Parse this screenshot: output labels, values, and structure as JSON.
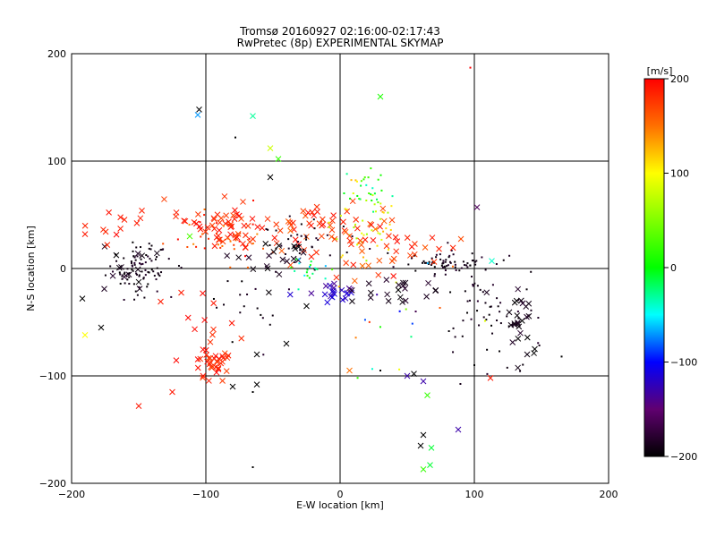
{
  "chart_data": {
    "type": "scatter",
    "title": "Tromsø 20160927 02:16:00-02:17:43",
    "subtitle": "RwPretec (8p) EXPERIMENTAL SKYMAP",
    "xlabel": "E-W location [km]",
    "ylabel": "N-S location [km]",
    "xlim": [
      -200,
      200
    ],
    "ylim": [
      -200,
      200
    ],
    "xticks": [
      -200,
      -100,
      0,
      100,
      200
    ],
    "yticks": [
      -200,
      -100,
      0,
      100,
      200
    ],
    "grid": true,
    "colorbar": {
      "unit": "[m/s]",
      "range": [
        -200,
        200
      ],
      "ticks": [
        200,
        100,
        0,
        -100,
        -200
      ]
    },
    "clusters": [
      {
        "marker": "dot",
        "cx": -150,
        "cy": 0,
        "sx": 12,
        "sy": 12,
        "n": 90,
        "vmin": -200,
        "vmax": -180
      },
      {
        "marker": "cross",
        "cx": -160,
        "cy": -5,
        "sx": 10,
        "sy": 10,
        "n": 14,
        "vmin": -200,
        "vmax": -180
      },
      {
        "marker": "cross",
        "cx": -85,
        "cy": 40,
        "sx": 18,
        "sy": 12,
        "n": 60,
        "vmin": 170,
        "vmax": 200
      },
      {
        "marker": "dot",
        "cx": -85,
        "cy": 30,
        "sx": 20,
        "sy": 12,
        "n": 40,
        "vmin": 140,
        "vmax": 200
      },
      {
        "marker": "cross",
        "cx": -170,
        "cy": 40,
        "sx": 12,
        "sy": 8,
        "n": 12,
        "vmin": 180,
        "vmax": 200
      },
      {
        "marker": "cross",
        "cx": -30,
        "cy": 40,
        "sx": 18,
        "sy": 14,
        "n": 40,
        "vmin": 160,
        "vmax": 200
      },
      {
        "marker": "dot",
        "cx": -30,
        "cy": 20,
        "sx": 20,
        "sy": 15,
        "n": 40,
        "vmin": -200,
        "vmax": -180
      },
      {
        "marker": "dot",
        "cx": 15,
        "cy": 40,
        "sx": 15,
        "sy": 20,
        "n": 50,
        "vmin": 60,
        "vmax": 130
      },
      {
        "marker": "dot",
        "cx": 20,
        "cy": 75,
        "sx": 8,
        "sy": 10,
        "n": 25,
        "vmin": -40,
        "vmax": 40
      },
      {
        "marker": "cross",
        "cx": 20,
        "cy": 20,
        "sx": 20,
        "sy": 15,
        "n": 30,
        "vmin": 150,
        "vmax": 200
      },
      {
        "marker": "cross",
        "cx": -5,
        "cy": -20,
        "sx": 8,
        "sy": 5,
        "n": 22,
        "vmin": -140,
        "vmax": -110
      },
      {
        "marker": "dot",
        "cx": 75,
        "cy": 5,
        "sx": 20,
        "sy": 6,
        "n": 70,
        "vmin": -200,
        "vmax": -180
      },
      {
        "marker": "cross",
        "cx": 60,
        "cy": 15,
        "sx": 18,
        "sy": 8,
        "n": 16,
        "vmin": 160,
        "vmax": 200
      },
      {
        "marker": "cross",
        "cx": 40,
        "cy": -20,
        "sx": 25,
        "sy": 8,
        "n": 22,
        "vmin": -200,
        "vmax": -180
      },
      {
        "marker": "dot",
        "cx": 110,
        "cy": -40,
        "sx": 18,
        "sy": 20,
        "n": 55,
        "vmin": -200,
        "vmax": -180
      },
      {
        "marker": "cross",
        "cx": 135,
        "cy": -50,
        "sx": 8,
        "sy": 15,
        "n": 25,
        "vmin": -200,
        "vmax": -180
      },
      {
        "marker": "cross",
        "cx": -95,
        "cy": -90,
        "sx": 6,
        "sy": 8,
        "n": 30,
        "vmin": 170,
        "vmax": 200
      },
      {
        "marker": "cross",
        "cx": -100,
        "cy": -55,
        "sx": 15,
        "sy": 20,
        "n": 18,
        "vmin": 170,
        "vmax": 200
      },
      {
        "marker": "dot",
        "cx": -70,
        "cy": -40,
        "sx": 15,
        "sy": 20,
        "n": 18,
        "vmin": -200,
        "vmax": -180
      },
      {
        "marker": "cross",
        "cx": -50,
        "cy": 10,
        "sx": 20,
        "sy": 10,
        "n": 20,
        "vmin": -200,
        "vmax": -180
      },
      {
        "marker": "dot",
        "cx": 40,
        "cy": -50,
        "sx": 30,
        "sy": 30,
        "n": 20,
        "vmin": -200,
        "vmax": 200
      },
      {
        "marker": "dot",
        "cx": -20,
        "cy": 0,
        "sx": 10,
        "sy": 8,
        "n": 20,
        "vmin": -80,
        "vmax": 20
      }
    ],
    "points": [
      {
        "x": -105,
        "y": 148,
        "marker": "cross",
        "v": -200
      },
      {
        "x": -106,
        "y": 143,
        "marker": "cross",
        "v": -70
      },
      {
        "x": -65,
        "y": 142,
        "marker": "cross",
        "v": -30
      },
      {
        "x": 30,
        "y": 160,
        "marker": "cross",
        "v": 10
      },
      {
        "x": 97,
        "y": 187,
        "marker": "dot",
        "v": 200
      },
      {
        "x": -78,
        "y": 122,
        "marker": "dot",
        "v": -200
      },
      {
        "x": -52,
        "y": 112,
        "marker": "cross",
        "v": 80
      },
      {
        "x": -46,
        "y": 102,
        "marker": "cross",
        "v": 20
      },
      {
        "x": -52,
        "y": 85,
        "marker": "cross",
        "v": -200
      },
      {
        "x": -190,
        "y": -62,
        "marker": "cross",
        "v": 100
      },
      {
        "x": -192,
        "y": -28,
        "marker": "cross",
        "v": -200
      },
      {
        "x": -178,
        "y": -55,
        "marker": "cross",
        "v": -200
      },
      {
        "x": -150,
        "y": -128,
        "marker": "cross",
        "v": 190
      },
      {
        "x": -125,
        "y": -115,
        "marker": "cross",
        "v": 190
      },
      {
        "x": -62,
        "y": -80,
        "marker": "cross",
        "v": -200
      },
      {
        "x": -62,
        "y": -108,
        "marker": "cross",
        "v": -200
      },
      {
        "x": -65,
        "y": -185,
        "marker": "dot",
        "v": -200
      },
      {
        "x": -65,
        "y": -115,
        "marker": "dot",
        "v": -200
      },
      {
        "x": 7,
        "y": -95,
        "marker": "cross",
        "v": 150
      },
      {
        "x": 30,
        "y": -95,
        "marker": "dot",
        "v": -200
      },
      {
        "x": 50,
        "y": -100,
        "marker": "cross",
        "v": -130
      },
      {
        "x": 55,
        "y": -98,
        "marker": "cross",
        "v": -200
      },
      {
        "x": 62,
        "y": -105,
        "marker": "cross",
        "v": -130
      },
      {
        "x": 65,
        "y": -118,
        "marker": "cross",
        "v": 20
      },
      {
        "x": 62,
        "y": -155,
        "marker": "cross",
        "v": -200
      },
      {
        "x": 60,
        "y": -165,
        "marker": "cross",
        "v": -200
      },
      {
        "x": 68,
        "y": -167,
        "marker": "cross",
        "v": -10
      },
      {
        "x": 88,
        "y": -150,
        "marker": "cross",
        "v": -130
      },
      {
        "x": 62,
        "y": -187,
        "marker": "cross",
        "v": 20
      },
      {
        "x": 67,
        "y": -183,
        "marker": "cross",
        "v": -10
      },
      {
        "x": 112,
        "y": -102,
        "marker": "cross",
        "v": 190
      },
      {
        "x": 100,
        "y": -90,
        "marker": "dot",
        "v": -200
      },
      {
        "x": 102,
        "y": 57,
        "marker": "cross",
        "v": -160
      },
      {
        "x": 113,
        "y": 7,
        "marker": "cross",
        "v": -40
      },
      {
        "x": 165,
        "y": -82,
        "marker": "dot",
        "v": -200
      },
      {
        "x": 145,
        "y": -75,
        "marker": "cross",
        "v": -200
      },
      {
        "x": -80,
        "y": -110,
        "marker": "cross",
        "v": -200
      },
      {
        "x": -112,
        "y": 30,
        "marker": "cross",
        "v": 30
      },
      {
        "x": -190,
        "y": 32,
        "marker": "cross",
        "v": 190
      },
      {
        "x": -40,
        "y": -70,
        "marker": "cross",
        "v": -200
      },
      {
        "x": -25,
        "y": -35,
        "marker": "cross",
        "v": -200
      }
    ]
  }
}
